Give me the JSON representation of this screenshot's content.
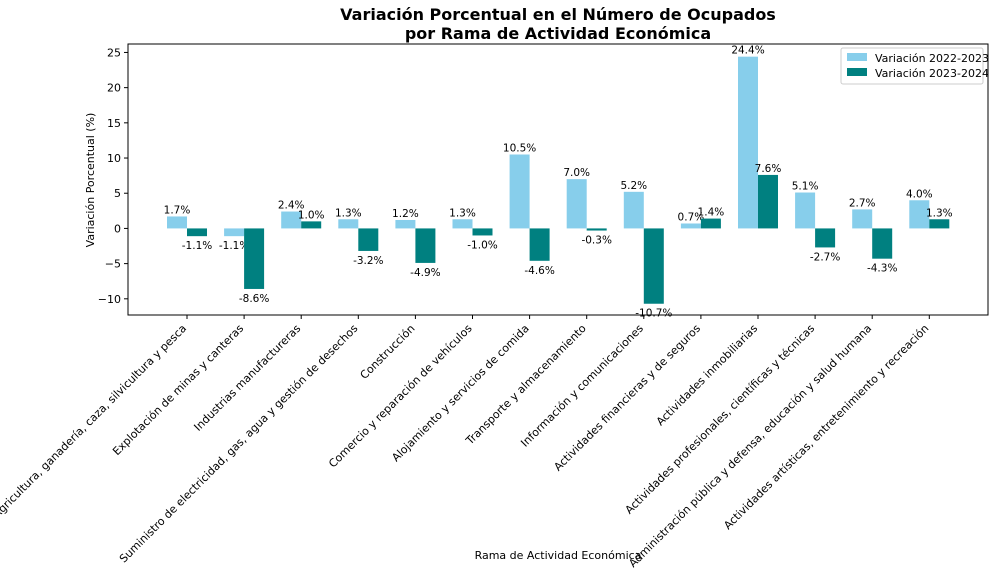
{
  "chart_data": {
    "type": "bar",
    "title_line1": "Variación Porcentual en el Número de Ocupados",
    "title_line2": "por Rama de Actividad Económica",
    "xlabel": "Rama de Actividad Económica",
    "ylabel": "Variación Porcentual (%)",
    "ylim": [
      -12.3,
      26.2
    ],
    "yticks": [
      -10,
      -5,
      0,
      5,
      10,
      15,
      20,
      25
    ],
    "ytick_labels": [
      "−10",
      "−5",
      "0",
      "5",
      "10",
      "15",
      "20",
      "25"
    ],
    "grid": false,
    "legend_position": "top-right",
    "categories": [
      "Agricultura, ganadería, caza, silvicultura y pesca",
      "Explotación de minas y canteras",
      "Industrias manufactureras",
      "Suministro de electricidad, gas, agua y gestión de desechos",
      "Construcción",
      "Comercio y reparación de vehículos",
      "Alojamiento y servicios de comida",
      "Transporte y almacenamiento",
      "Información y comunicaciones",
      "Actividades financieras y de seguros",
      "Actividades inmobiliarias",
      "Actividades profesionales, científicas y técnicas",
      "Administración pública y defensa, educación y salud humana",
      "Actividades artísticas, entretenimiento y recreación"
    ],
    "series": [
      {
        "name": "Variación 2022-2023",
        "color": "#87ceeb",
        "values": [
          1.7,
          -1.1,
          2.4,
          1.3,
          1.2,
          1.3,
          10.5,
          7.0,
          5.2,
          0.7,
          24.4,
          5.1,
          2.7,
          4.0
        ],
        "labels": [
          "1.7%",
          "-1.1%",
          "2.4%",
          "1.3%",
          "1.2%",
          "1.3%",
          "10.5%",
          "7.0%",
          "5.2%",
          "0.7%",
          "24.4%",
          "5.1%",
          "2.7%",
          "4.0%"
        ]
      },
      {
        "name": "Variación 2023-2024",
        "color": "#008080",
        "values": [
          -1.1,
          -8.6,
          1.0,
          -3.2,
          -4.9,
          -1.0,
          -4.6,
          -0.3,
          -10.7,
          1.4,
          7.6,
          -2.7,
          -4.3,
          1.3
        ],
        "labels": [
          "-1.1%",
          "-8.6%",
          "1.0%",
          "-3.2%",
          "-4.9%",
          "-1.0%",
          "-4.6%",
          "-0.3%",
          "-10.7%",
          "1.4%",
          "7.6%",
          "-2.7%",
          "-4.3%",
          "1.3%"
        ]
      }
    ]
  }
}
